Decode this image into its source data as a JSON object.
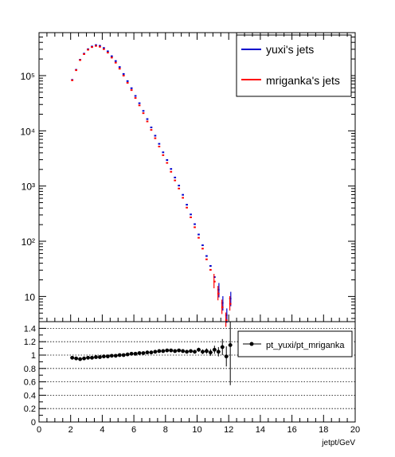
{
  "upper": {
    "legend": [
      "yuxi's jets",
      "mriganka's jets"
    ],
    "ytick_labels": [
      "10",
      "10²",
      "10³",
      "10⁴",
      "10⁵"
    ],
    "ytick_values": [
      10,
      100,
      1000,
      10000,
      100000
    ],
    "ylim": [
      3.5,
      600000
    ],
    "scale": "log"
  },
  "lower": {
    "legend": [
      "pt_yuxi/pt_mriganka"
    ],
    "ytick_labels": [
      "0",
      "0.2",
      "0.4",
      "0.6",
      "0.8",
      "1",
      "1.2",
      "1.4"
    ],
    "ytick_values": [
      0,
      0.2,
      0.4,
      0.6,
      0.8,
      1,
      1.2,
      1.4
    ],
    "ylim": [
      0,
      1.5
    ],
    "grid": "horizontal dotted"
  },
  "xaxis": {
    "label": "jetpt/GeV",
    "xlim": [
      0,
      20
    ],
    "tick_labels": [
      "0",
      "2",
      "4",
      "6",
      "8",
      "10",
      "12",
      "14",
      "16",
      "18",
      "20"
    ],
    "tick_values": [
      0,
      2,
      4,
      6,
      8,
      10,
      12,
      14,
      16,
      18,
      20
    ]
  },
  "colors": {
    "yuxi": "#0000cc",
    "mriganka": "#ff0000",
    "ratio": "#000000"
  },
  "chart_data": [
    {
      "type": "histogram",
      "scale": "log",
      "x": [
        2.1,
        2.35,
        2.6,
        2.85,
        3.1,
        3.35,
        3.6,
        3.85,
        4.1,
        4.35,
        4.6,
        4.85,
        5.1,
        5.35,
        5.6,
        5.85,
        6.1,
        6.35,
        6.6,
        6.85,
        7.1,
        7.35,
        7.6,
        7.85,
        8.1,
        8.35,
        8.6,
        8.85,
        9.1,
        9.35,
        9.6,
        9.85,
        10.1,
        10.35,
        10.6,
        10.85,
        11.1,
        11.35,
        11.6,
        11.85,
        12.1
      ],
      "bin_width": 0.25,
      "series": [
        {
          "name": "yuxi's jets",
          "values": [
            82000,
            125000,
            190000,
            245000,
            295000,
            330000,
            350000,
            340000,
            310000,
            270000,
            220000,
            180000,
            140000,
            105000,
            78000,
            58000,
            42000,
            31000,
            22500,
            16000,
            11300,
            8000,
            5700,
            4000,
            2900,
            2000,
            1400,
            1000,
            680,
            450,
            300,
            200,
            130,
            83,
            53,
            35,
            22,
            13,
            7.5,
            4.5,
            9
          ]
        },
        {
          "name": "mriganka's jets",
          "values": [
            84000,
            128000,
            195000,
            250000,
            300000,
            335000,
            352000,
            340000,
            308000,
            266000,
            216000,
            175000,
            136000,
            102000,
            75500,
            55800,
            40100,
            29500,
            21300,
            15100,
            10600,
            7500,
            5300,
            3700,
            2680,
            1850,
            1290,
            920,
            625,
            415,
            277,
            183,
            118,
            75,
            48,
            31,
            19,
            11.5,
            6.5,
            3.8,
            7.5
          ]
        }
      ],
      "legend": [
        "yuxi's jets",
        "mriganka's jets"
      ]
    },
    {
      "type": "scatter",
      "name": "pt_yuxi/pt_mriganka",
      "x": [
        2.1,
        2.35,
        2.6,
        2.85,
        3.1,
        3.35,
        3.6,
        3.85,
        4.1,
        4.35,
        4.6,
        4.85,
        5.1,
        5.35,
        5.6,
        5.85,
        6.1,
        6.35,
        6.6,
        6.85,
        7.1,
        7.35,
        7.6,
        7.85,
        8.1,
        8.35,
        8.6,
        8.85,
        9.1,
        9.35,
        9.6,
        9.85,
        10.1,
        10.35,
        10.6,
        10.85,
        11.1,
        11.35,
        11.6,
        11.85,
        12.1
      ],
      "y": [
        0.96,
        0.95,
        0.94,
        0.95,
        0.96,
        0.96,
        0.97,
        0.97,
        0.98,
        0.98,
        0.99,
        0.99,
        1.0,
        1.0,
        1.01,
        1.02,
        1.02,
        1.03,
        1.03,
        1.04,
        1.04,
        1.05,
        1.06,
        1.06,
        1.07,
        1.07,
        1.06,
        1.07,
        1.06,
        1.05,
        1.06,
        1.05,
        1.08,
        1.05,
        1.06,
        1.04,
        1.08,
        1.05,
        1.12,
        0.98,
        1.15
      ],
      "yerr": [
        0.005,
        0.005,
        0.005,
        0.005,
        0.005,
        0.005,
        0.005,
        0.005,
        0.005,
        0.005,
        0.005,
        0.005,
        0.005,
        0.005,
        0.005,
        0.005,
        0.005,
        0.005,
        0.005,
        0.005,
        0.005,
        0.005,
        0.005,
        0.005,
        0.006,
        0.007,
        0.008,
        0.01,
        0.012,
        0.015,
        0.02,
        0.025,
        0.03,
        0.035,
        0.04,
        0.05,
        0.06,
        0.07,
        0.12,
        0.15,
        0.6
      ],
      "ylim": [
        0,
        1.5
      ],
      "legend": [
        "pt_yuxi/pt_mriganka"
      ]
    }
  ]
}
